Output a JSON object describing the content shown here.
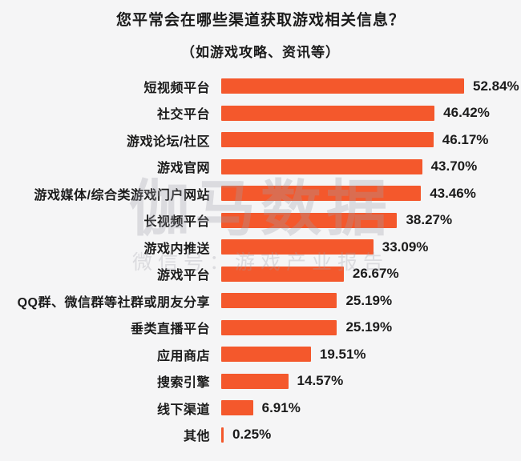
{
  "page": {
    "title": "您平常会在哪些渠道获取游戏相关信息？",
    "subtitle": "（如游戏攻略、资讯等）"
  },
  "watermark": {
    "brand": "伽马数据",
    "wechat": "微信号：游戏产业报告"
  },
  "colors": {
    "bar": "#f4582c",
    "background": "#f5f5f6",
    "text": "#1b1b1b"
  },
  "chart_data": {
    "type": "bar",
    "orientation": "horizontal",
    "title": "您平常会在哪些渠道获取游戏相关信息？",
    "subtitle": "（如游戏攻略、资讯等）",
    "xlabel": "",
    "ylabel": "",
    "xlim": [
      0,
      57
    ],
    "grid": false,
    "legend": false,
    "categories": [
      "短视频平台",
      "社交平台",
      "游戏论坛/社区",
      "游戏官网",
      "游戏媒体/综合类游戏门户网站",
      "长视频平台",
      "游戏内推送",
      "游戏平台",
      "QQ群、微信群等社群或朋友分享",
      "垂类直播平台",
      "应用商店",
      "搜索引擎",
      "线下渠道",
      "其他"
    ],
    "values": [
      52.84,
      46.42,
      46.17,
      43.7,
      43.46,
      38.27,
      33.09,
      26.67,
      25.19,
      25.19,
      19.51,
      14.57,
      6.91,
      0.25
    ],
    "value_labels": [
      "52.84%",
      "46.42%",
      "46.17%",
      "43.70%",
      "43.46%",
      "38.27%",
      "33.09%",
      "26.67%",
      "25.19%",
      "25.19%",
      "19.51%",
      "14.57%",
      "6.91%",
      "0.25%"
    ]
  }
}
